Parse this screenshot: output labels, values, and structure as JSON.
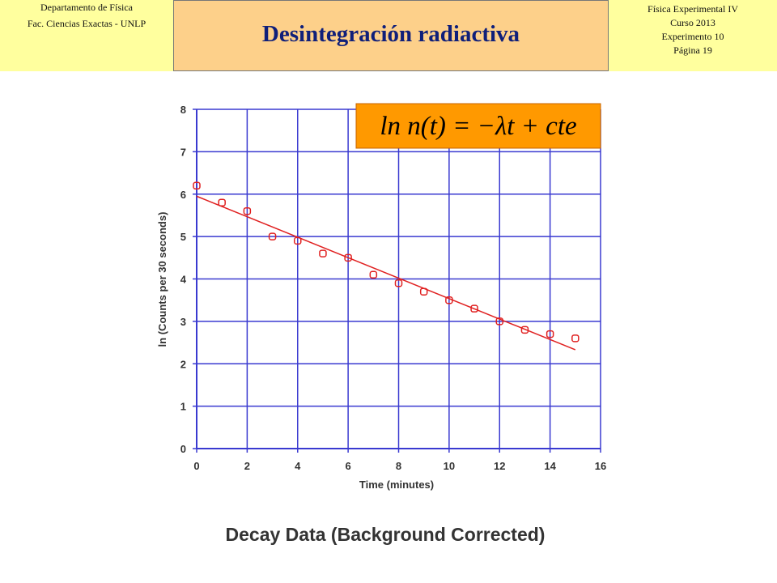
{
  "header": {
    "left": {
      "department": "Departamento de Física",
      "faculty": "Fac. Ciencias Exactas - UNLP"
    },
    "title": "Desintegración radiactiva",
    "right": {
      "course": "Física Experimental IV",
      "year": "Curso 2013",
      "experiment": "Experimento 10",
      "page": "Página 19"
    },
    "colors": {
      "side_background": "#ffff9e",
      "center_background": "#fdd08a",
      "title_color": "#0f1f7a"
    }
  },
  "equation": {
    "text": "ln n(t) = −λt + cte",
    "background": "#ff9900"
  },
  "chart_data": {
    "type": "scatter",
    "title": "",
    "caption": "Decay Data (Background Corrected)",
    "xlabel": "Time (minutes)",
    "ylabel": "ln (Counts per 30 seconds)",
    "xlim": [
      0,
      16
    ],
    "ylim": [
      0,
      8
    ],
    "xticks": [
      "0",
      "2",
      "4",
      "6",
      "8",
      "10",
      "12",
      "14",
      "16"
    ],
    "yticks": [
      "0",
      "1",
      "2",
      "3",
      "4",
      "5",
      "6",
      "7",
      "8"
    ],
    "grid": true,
    "grid_color": "#3a3ad0",
    "marker_color": "#e02020",
    "series": [
      {
        "points": [
          {
            "x": 0,
            "y": 6.2
          },
          {
            "x": 1,
            "y": 5.8
          },
          {
            "x": 2,
            "y": 5.6
          },
          {
            "x": 3,
            "y": 5.0
          },
          {
            "x": 4,
            "y": 4.9
          },
          {
            "x": 5,
            "y": 4.6
          },
          {
            "x": 6,
            "y": 4.5
          },
          {
            "x": 7,
            "y": 4.1
          },
          {
            "x": 8,
            "y": 3.9
          },
          {
            "x": 9,
            "y": 3.7
          },
          {
            "x": 10,
            "y": 3.5
          },
          {
            "x": 11,
            "y": 3.3
          },
          {
            "x": 12,
            "y": 3.0
          },
          {
            "x": 13,
            "y": 2.8
          },
          {
            "x": 14,
            "y": 2.7
          },
          {
            "x": 15,
            "y": 2.6
          }
        ]
      }
    ],
    "fit_line": {
      "x": [
        0,
        15
      ],
      "y": [
        5.95,
        2.33
      ]
    }
  }
}
